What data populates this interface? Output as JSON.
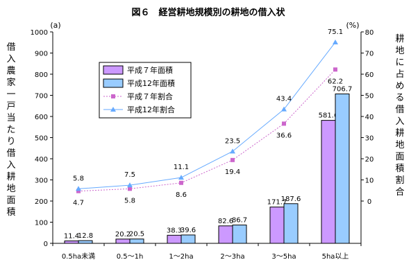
{
  "chart_data": {
    "type": "bar+line",
    "title": "図６　経営耕地規模別の耕地の借入状",
    "categories": [
      "0.5ha未満",
      "0.5～1h",
      "1～2ha",
      "2～3ha",
      "3～5ha",
      "5ha以上"
    ],
    "left_axis": {
      "unit": "(a)",
      "label": "借入農家一戸当たり借入耕地面積",
      "range": [
        0,
        1000
      ],
      "ticks": [
        "0",
        "100",
        "200",
        "300",
        "400",
        "500",
        "600",
        "700",
        "800",
        "900",
        "1000"
      ]
    },
    "right_axis": {
      "unit": "(%)",
      "label": "耕地に占める借入耕地面積割合",
      "range": [
        -20,
        80
      ],
      "ticks": [
        "0",
        "10",
        "20",
        "30",
        "40",
        "50",
        "60",
        "70",
        "80"
      ]
    },
    "bar_series": [
      {
        "name": "平成７年面積",
        "color": "#cc99ff",
        "values": [
          11.4,
          20.2,
          38.3,
          82.6,
          171.7,
          581.6
        ],
        "labels": [
          "11.4",
          "20.2",
          "38.3",
          "82.6",
          "171.7",
          "581.6"
        ]
      },
      {
        "name": "平成12年面積",
        "color": "#99ccff",
        "values": [
          12.8,
          20.5,
          39.6,
          86.7,
          187.6,
          706.7
        ],
        "labels": [
          "12.8",
          "20.5",
          "39.6",
          "86.7",
          "187.6",
          "706.7"
        ]
      }
    ],
    "line_series": [
      {
        "name": "平成７年割合",
        "color": "#cc66cc",
        "dash": true,
        "marker": "square",
        "values": [
          4.7,
          5.8,
          8.6,
          19.4,
          36.6,
          62.2
        ],
        "labels": [
          "4.7",
          "5.8",
          "8.6",
          "19.4",
          "36.6",
          "62.2"
        ]
      },
      {
        "name": "平成12年割合",
        "color": "#66aaff",
        "dash": false,
        "marker": "triangle",
        "values": [
          5.8,
          7.5,
          11.1,
          23.5,
          43.4,
          75.1
        ],
        "labels": [
          "5.8",
          "7.5",
          "11.1",
          "23.5",
          "43.4",
          "75.1"
        ]
      }
    ],
    "legend_position": "upper-left inside plot",
    "grid": false
  }
}
